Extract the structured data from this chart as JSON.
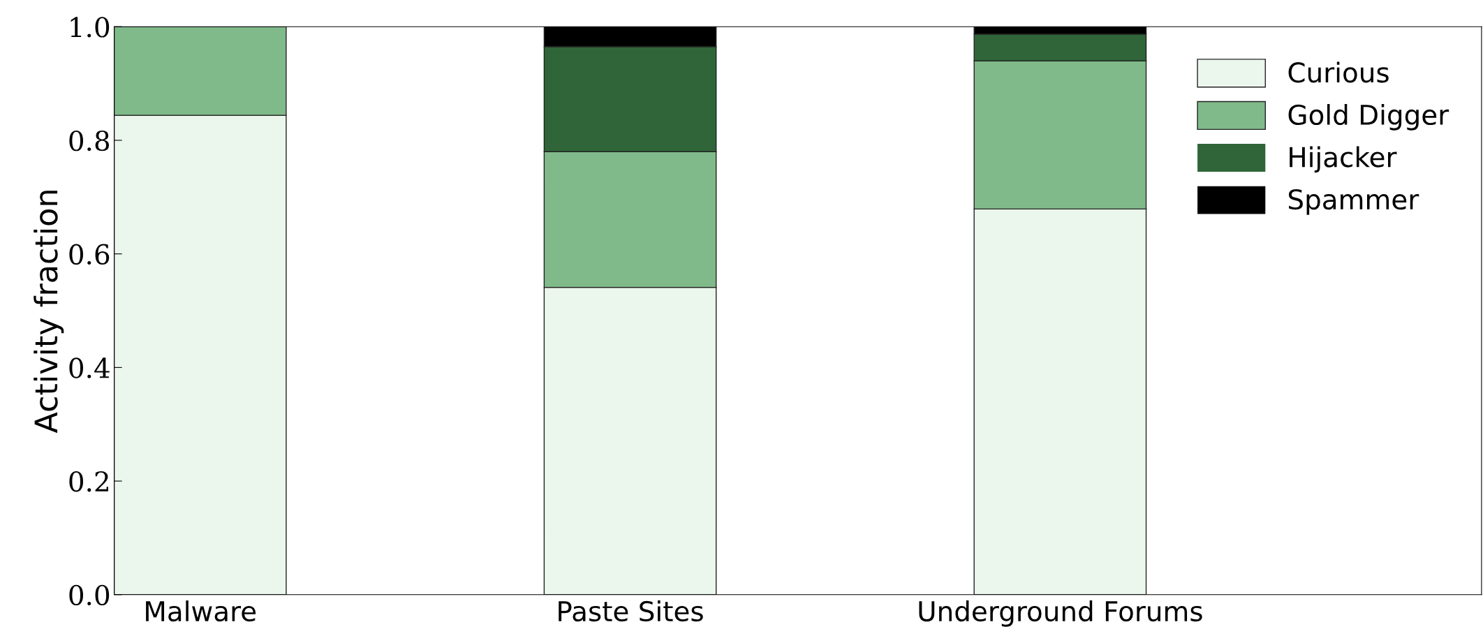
{
  "chart_data": {
    "type": "bar",
    "stacked": true,
    "ylabel": "Activity fraction",
    "categories": [
      "Malware",
      "Paste Sites",
      "Underground Forums"
    ],
    "series": [
      {
        "name": "Curious",
        "color": "#ebf6ec",
        "values": [
          0.844,
          0.541,
          0.679
        ]
      },
      {
        "name": "Gold Digger",
        "color": "#80ba8a",
        "values": [
          0.156,
          0.239,
          0.261
        ]
      },
      {
        "name": "Hijacker",
        "color": "#2f6538",
        "values": [
          0,
          0.185,
          0.047
        ]
      },
      {
        "name": "Spammer",
        "color": "#000000",
        "values": [
          0,
          0.035,
          0.013
        ]
      }
    ],
    "ylim": [
      0,
      1.0
    ],
    "yticks": [
      {
        "value": 0,
        "label": "0.0"
      },
      {
        "value": 0.2,
        "label": "0.2"
      },
      {
        "value": 0.4,
        "label": "0.4"
      },
      {
        "value": 0.6,
        "label": "0.6"
      },
      {
        "value": 0.8,
        "label": "0.8"
      },
      {
        "value": 1.0,
        "label": "1.0"
      }
    ],
    "grid": false,
    "legend": "top right"
  }
}
